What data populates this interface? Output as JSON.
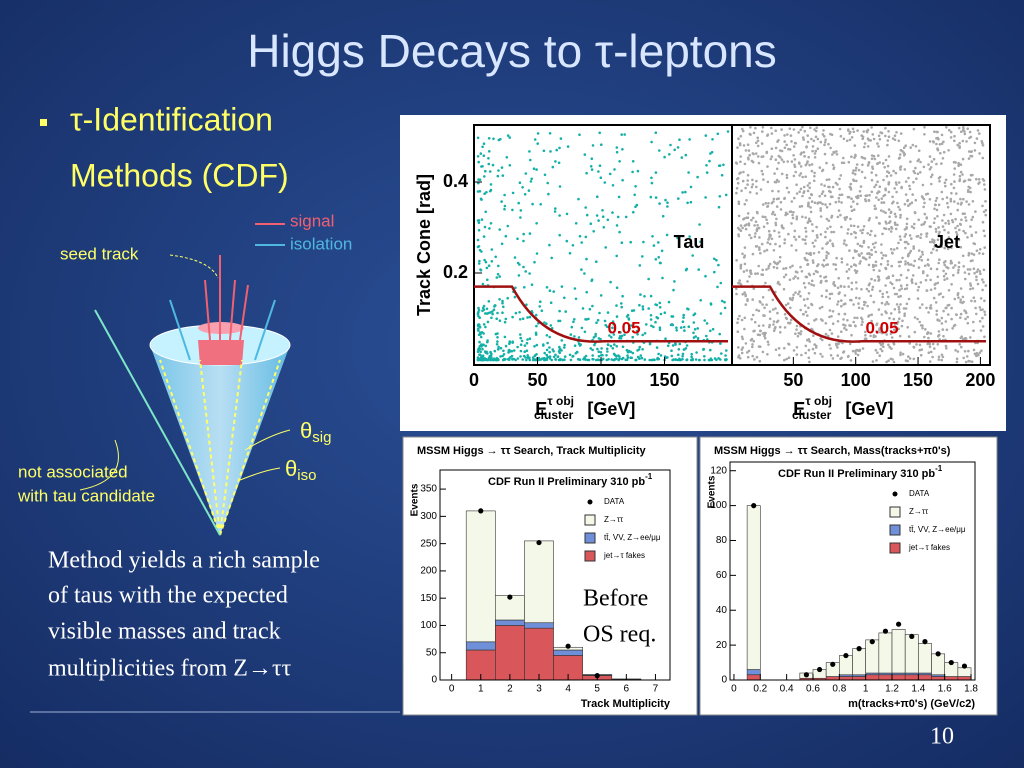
{
  "title": "Higgs Decays to τ-leptons",
  "bullet": [
    "τ-Identification",
    "Methods (CDF)"
  ],
  "cone": {
    "legend": [
      "signal",
      "isolation"
    ],
    "seed_label": "seed track",
    "theta_sig": [
      "θ",
      "sig"
    ],
    "theta_iso": [
      "θ",
      "iso"
    ],
    "not_associated": [
      "not associated",
      "with tau candidate"
    ]
  },
  "text": [
    "Method yields a rich sample",
    "of taus with the expected",
    "visible masses and track",
    "multiplicities from Z→ττ"
  ],
  "note": [
    "Before",
    "OS req."
  ],
  "page_number": "10",
  "scatter": {
    "y_label": "Track Cone  [rad]",
    "yticks": [
      0.2,
      0.4
    ],
    "panels": [
      {
        "label": "Tau",
        "cut": 0.05,
        "xticks": [
          0,
          50,
          100,
          150
        ]
      },
      {
        "label": "Jet",
        "cut": 0.05,
        "xticks": [
          50,
          100,
          150,
          200
        ]
      }
    ],
    "x_label": {
      "e": "E",
      "sup": "τ obj",
      "sub": "cluster",
      "unit": "[GeV]"
    }
  },
  "hist1": {
    "title": "MSSM Higgs → ττ Search, Track Multiplicity",
    "subtitle": "CDF Run II Preliminary 310 pb",
    "subtitle_sup": "-1",
    "y_label": "Events",
    "x_label": "Track Multiplicity",
    "x": [
      1,
      2,
      3,
      4,
      5,
      6,
      7
    ],
    "xlim": [
      -0.4,
      7.5
    ],
    "ylim": [
      0,
      385
    ],
    "xticks": [
      0,
      1,
      2,
      3,
      4,
      5,
      6,
      7
    ],
    "yticks": [
      0,
      50,
      100,
      150,
      200,
      250,
      300,
      350
    ],
    "series": [
      {
        "name": "jet→τ fakes",
        "color": "#d9575a",
        "values": [
          55,
          100,
          95,
          45,
          8,
          1,
          0
        ]
      },
      {
        "name": "tt̄, VV, Z→ee/μμ",
        "color": "#6f8fd8",
        "values": [
          15,
          10,
          10,
          10,
          1,
          0,
          0
        ]
      },
      {
        "name": "Z→ττ",
        "color": "#f4f8e8",
        "values": [
          240,
          45,
          150,
          5,
          1,
          1,
          0
        ]
      }
    ],
    "data": {
      "name": "DATA",
      "values": [
        310,
        152,
        252,
        62,
        8,
        null,
        null
      ]
    }
  },
  "hist2": {
    "title": "MSSM Higgs → ττ Search, Mass(tracks+π0's)",
    "subtitle": "CDF Run II Preliminary 310 pb",
    "subtitle_sup": "-1",
    "y_label": "Events",
    "x_label": "m(tracks+π0's) (GeV/c2)",
    "x": [
      0.15,
      0.55,
      0.65,
      0.75,
      0.85,
      0.95,
      1.05,
      1.15,
      1.25,
      1.35,
      1.45,
      1.55,
      1.65,
      1.75
    ],
    "xlim": [
      -0.03,
      1.83
    ],
    "ylim": [
      0,
      125
    ],
    "xticks": [
      0,
      0.2,
      0.4,
      0.6,
      0.8,
      1,
      1.2,
      1.4,
      1.6,
      1.8
    ],
    "yticks": [
      0,
      20,
      40,
      60,
      80,
      100,
      120
    ],
    "series": [
      {
        "name": "jet→τ fakes",
        "color": "#d9575a",
        "values": [
          3,
          1,
          1,
          2,
          2,
          2,
          3,
          3,
          3,
          3,
          3,
          2,
          2,
          2
        ]
      },
      {
        "name": "tt̄, VV, Z→ee/μμ",
        "color": "#6f8fd8",
        "values": [
          3,
          0,
          0,
          0,
          1,
          1,
          1,
          1,
          1,
          1,
          1,
          1,
          0,
          0
        ]
      },
      {
        "name": "Z→ττ",
        "color": "#f4f8e8",
        "values": [
          94,
          3,
          5,
          8,
          11,
          15,
          19,
          23,
          25,
          22,
          17,
          12,
          8,
          5
        ]
      }
    ],
    "data": {
      "name": "DATA",
      "values": [
        100,
        3,
        6,
        9,
        14,
        18,
        22,
        28,
        32,
        25,
        22,
        15,
        10,
        8
      ]
    }
  }
}
